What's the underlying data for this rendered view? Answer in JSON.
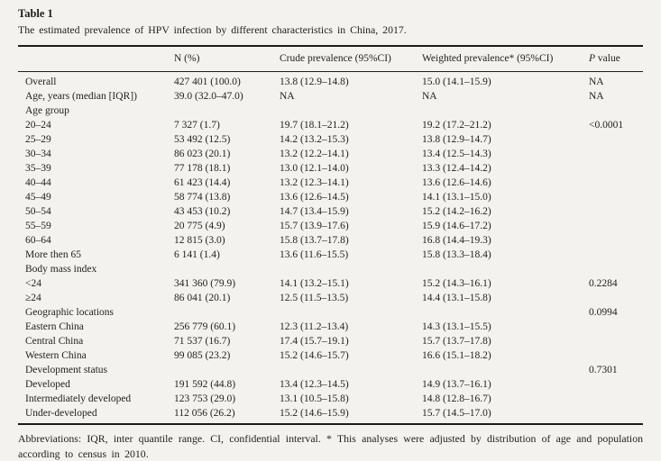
{
  "table": {
    "label": "Table 1",
    "caption": "The estimated prevalence of HPV infection by different characteristics in China, 2017.",
    "columns": {
      "label": "",
      "n": "N (%)",
      "crude": "Crude prevalence (95%CI)",
      "weighted": "Weighted prevalence* (95%CI)",
      "p_italic": "P",
      "p_rest": " value"
    },
    "rows": [
      {
        "label": "Overall",
        "n": "427 401 (100.0)",
        "crude": "13.8 (12.9–14.8)",
        "weighted": "15.0 (14.1–15.9)",
        "p": "NA"
      },
      {
        "label": "Age, years (median [IQR])",
        "n": "39.0 (32.0–47.0)",
        "crude": "NA",
        "weighted": "NA",
        "p": "NA"
      },
      {
        "label": "Age group"
      },
      {
        "label": "20–24",
        "n": "7 327 (1.7)",
        "crude": "19.7 (18.1–21.2)",
        "weighted": "19.2 (17.2–21.2)",
        "p": "<0.0001"
      },
      {
        "label": "25–29",
        "n": "53 492 (12.5)",
        "crude": "14.2 (13.2–15.3)",
        "weighted": "13.8 (12.9–14.7)"
      },
      {
        "label": "30–34",
        "n": "86 023 (20.1)",
        "crude": "13.2 (12.2–14.1)",
        "weighted": "13.4 (12.5–14.3)"
      },
      {
        "label": "35–39",
        "n": "77 178 (18.1)",
        "crude": "13.0 (12.1–14.0)",
        "weighted": "13.3 (12.4–14.2)"
      },
      {
        "label": "40–44",
        "n": "61 423 (14.4)",
        "crude": "13.2 (12.3–14.1)",
        "weighted": "13.6 (12.6–14.6)"
      },
      {
        "label": "45–49",
        "n": "58 774 (13.8)",
        "crude": "13.6 (12.6–14.5)",
        "weighted": "14.1 (13.1–15.0)"
      },
      {
        "label": "50–54",
        "n": "43 453 (10.2)",
        "crude": "14.7 (13.4–15.9)",
        "weighted": "15.2 (14.2–16.2)"
      },
      {
        "label": "55–59",
        "n": "20 775 (4.9)",
        "crude": "15.7 (13.9–17.6)",
        "weighted": "15.9 (14.6–17.2)"
      },
      {
        "label": "60–64",
        "n": "12 815 (3.0)",
        "crude": "15.8 (13.7–17.8)",
        "weighted": "16.8 (14.4–19.3)"
      },
      {
        "label": "More then 65",
        "n": "6 141 (1.4)",
        "crude": "13.6 (11.6–15.5)",
        "weighted": "15.8 (13.3–18.4)"
      },
      {
        "label": "Body mass index"
      },
      {
        "label": "<24",
        "n": "341 360 (79.9)",
        "crude": "14.1 (13.2–15.1)",
        "weighted": "15.2 (14.3–16.1)",
        "p": "0.2284"
      },
      {
        "label": "≥24",
        "n": "86 041 (20.1)",
        "crude": "12.5 (11.5–13.5)",
        "weighted": "14.4 (13.1–15.8)"
      },
      {
        "label": "Geographic locations",
        "p": "0.0994"
      },
      {
        "label": "Eastern China",
        "n": "256 779 (60.1)",
        "crude": "12.3 (11.2–13.4)",
        "weighted": "14.3 (13.1–15.5)"
      },
      {
        "label": "Central China",
        "n": "71 537 (16.7)",
        "crude": "17.4 (15.7–19.1)",
        "weighted": "15.7 (13.7–17.8)"
      },
      {
        "label": "Western China",
        "n": "99 085 (23.2)",
        "crude": "15.2 (14.6–15.7)",
        "weighted": "16.6 (15.1–18.2)"
      },
      {
        "label": "Development status",
        "p": "0.7301"
      },
      {
        "label": "Developed",
        "n": "191 592 (44.8)",
        "crude": "13.4 (12.3–14.5)",
        "weighted": "14.9 (13.7–16.1)"
      },
      {
        "label": "Intermediately developed",
        "n": "123 753 (29.0)",
        "crude": "13.1 (10.5–15.8)",
        "weighted": "14.8 (12.8–16.7)"
      },
      {
        "label": "Under-developed",
        "n": "112 056 (26.2)",
        "crude": "15.2 (14.6–15.9)",
        "weighted": "15.7 (14.5–17.0)"
      }
    ],
    "footnote": "Abbreviations: IQR, inter quantile range. CI, confidential interval. * This analyses were adjusted by distribution of age and population according to census in 2010."
  }
}
